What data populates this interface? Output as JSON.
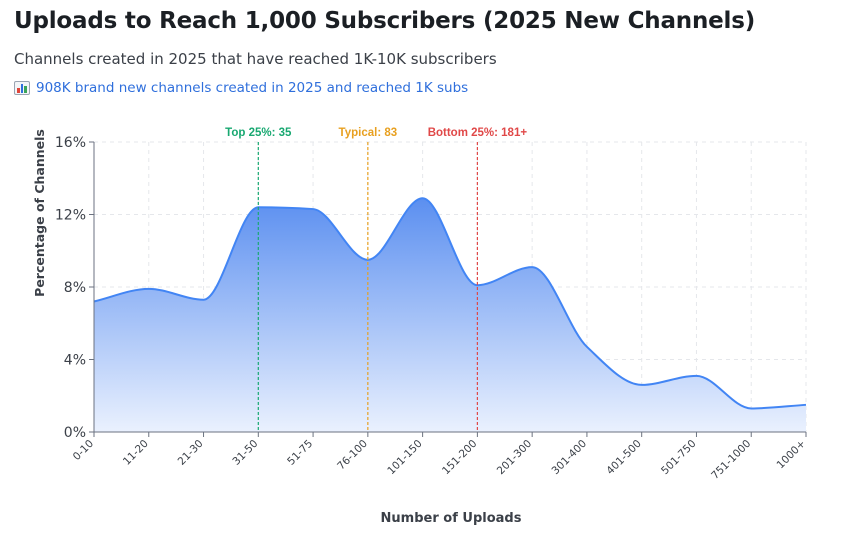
{
  "header": {
    "title": "Uploads to Reach 1,000 Subscribers (2025 New Channels)",
    "subtitle": "Channels created in 2025 that have reached 1K-10K subscribers",
    "stat_icon": "bar-chart-icon",
    "stat_text": "908K brand new channels created in 2025 and reached 1K subs"
  },
  "chart_data": {
    "type": "area",
    "title": "Uploads to Reach 1,000 Subscribers (2025 New Channels)",
    "xlabel": "Number of Uploads",
    "ylabel": "Percentage of Channels",
    "categories": [
      "0-10",
      "11-20",
      "21-30",
      "31-50",
      "51-75",
      "76-100",
      "101-150",
      "151-200",
      "201-300",
      "301-400",
      "401-500",
      "501-750",
      "751-1000",
      "1000+"
    ],
    "series": [
      {
        "name": "Percentage of Channels",
        "values": [
          7.2,
          7.9,
          7.3,
          12.4,
          12.3,
          9.5,
          12.9,
          8.1,
          9.1,
          4.7,
          2.6,
          3.1,
          1.3,
          1.5
        ]
      }
    ],
    "ylim": [
      0,
      16
    ],
    "yticks": [
      0,
      4,
      8,
      12,
      16
    ],
    "ytick_labels": [
      "0%",
      "4%",
      "8%",
      "12%",
      "16%"
    ],
    "grid": true,
    "colors": {
      "line": "#4285f4",
      "fill_top": "#5b8ff0",
      "fill_bottom": "#eaf1fe",
      "top": "#18a871",
      "typical": "#e8a020",
      "bottom": "#e04848",
      "axis": "#6b7280",
      "grid": "#e5e7eb"
    },
    "annotations": [
      {
        "id": "top",
        "label": "Top 25%: 35",
        "category_index": 3
      },
      {
        "id": "typical",
        "label": "Typical: 83",
        "category_index": 5
      },
      {
        "id": "bottom",
        "label": "Bottom 25%: 181+",
        "category_index": 7
      }
    ]
  }
}
